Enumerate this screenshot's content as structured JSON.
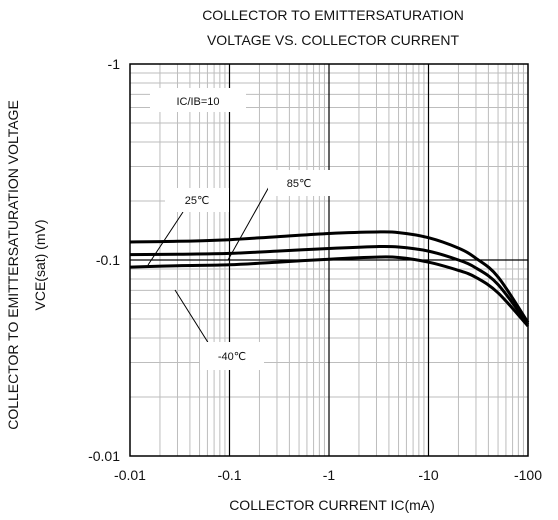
{
  "chart_data": {
    "type": "line",
    "title_lines": [
      "COLLECTOR TO EMITTERSATURATION",
      "VOLTAGE VS. COLLECTOR CURRENT"
    ],
    "xlabel": "COLLECTOR CURRENT  IC(mA)",
    "ylabel_lines": [
      "COLLECTOR TO EMITTERSATURATION VOLTAGE",
      "VCE(sat)  (mV)"
    ],
    "x_scale": "log",
    "y_scale": "log",
    "x_magnitude_range": [
      0.01,
      100
    ],
    "y_magnitude_range": [
      0.01,
      1
    ],
    "x_tick_labels": [
      "-0.01",
      "-0.1",
      "-1",
      "-10",
      "-100"
    ],
    "y_tick_labels": [
      "-0.01",
      "-0.1",
      "-1"
    ],
    "grid": true,
    "condition_label": "IC/IB=10",
    "series": [
      {
        "name": "85℃",
        "x": [
          0.01,
          0.03,
          0.1,
          0.3,
          1,
          3,
          5,
          10,
          20,
          30,
          50,
          100
        ],
        "y": [
          0.092,
          0.0935,
          0.0945,
          0.0975,
          0.101,
          0.1035,
          0.103,
          0.0975,
          0.0885,
          0.0815,
          0.068,
          0.046
        ]
      },
      {
        "name": "25℃",
        "x": [
          0.01,
          0.03,
          0.1,
          0.3,
          1,
          3,
          5,
          10,
          20,
          30,
          50,
          100
        ],
        "y": [
          0.1065,
          0.107,
          0.108,
          0.111,
          0.1145,
          0.117,
          0.1165,
          0.111,
          0.1,
          0.091,
          0.075,
          0.047
        ]
      },
      {
        "name": "-40℃",
        "x": [
          0.01,
          0.03,
          0.1,
          0.3,
          1,
          3,
          5,
          10,
          20,
          30,
          50,
          100
        ],
        "y": [
          0.1235,
          0.1245,
          0.127,
          0.1315,
          0.1365,
          0.139,
          0.138,
          0.13,
          0.115,
          0.102,
          0.082,
          0.048
        ]
      }
    ]
  }
}
